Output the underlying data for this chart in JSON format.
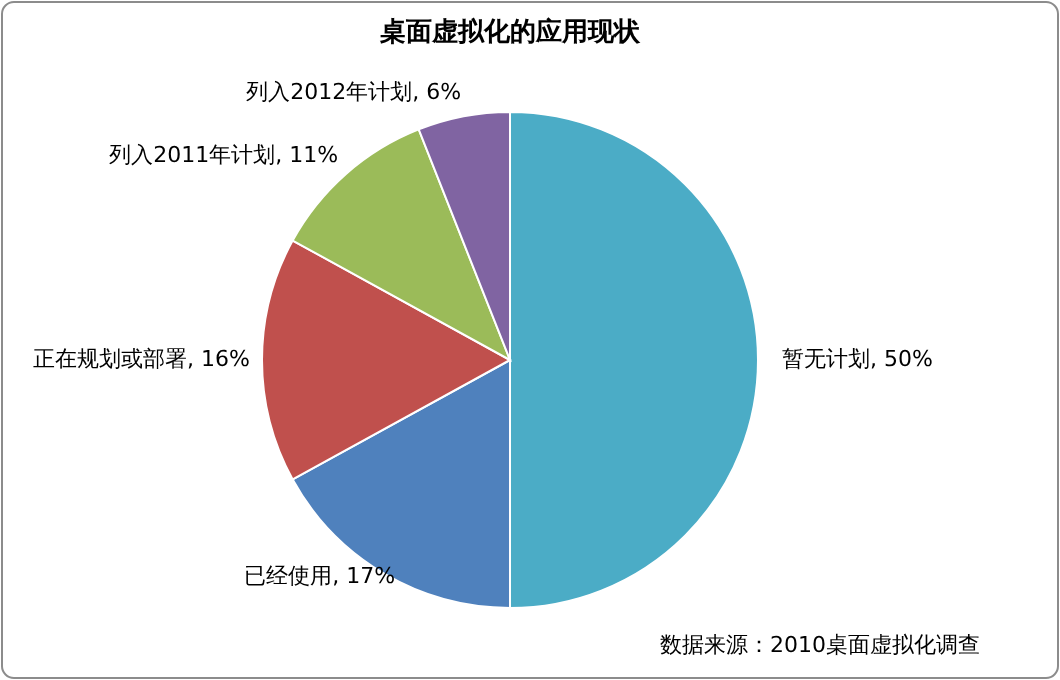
{
  "chart_data": {
    "type": "pie",
    "title": "桌面虚拟化的应用现状",
    "categories": [
      "暂无计划",
      "已经使用",
      "正在规划或部署",
      "列入2011年计划",
      "列入2012年计划"
    ],
    "values": [
      50,
      17,
      16,
      11,
      6
    ],
    "value_labels": [
      "50%",
      "17%",
      "16%",
      "11%",
      "6%"
    ],
    "colors": [
      "#4bacc6",
      "#4f81bd",
      "#c0504d",
      "#9bbb59",
      "#8064a2"
    ],
    "legend": false,
    "annotations": [
      "数据来源：2010桌面虚拟化调查"
    ]
  }
}
